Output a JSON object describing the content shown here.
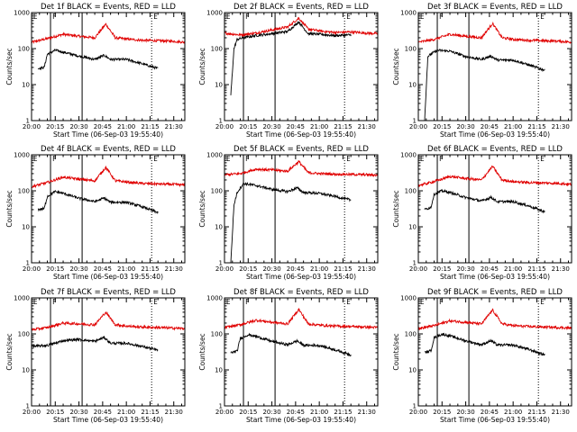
{
  "figure": {
    "colors": {
      "events": "#000000",
      "lld": "#e00000",
      "frame": "#000000",
      "background": "#ffffff"
    }
  },
  "chart_data": [
    {
      "type": "line",
      "title": "Det 1f BLACK = Events, RED = LLD",
      "xlabel": "Start Time (06-Sep-03 19:55:40)",
      "ylabel": "Counts/sec",
      "xscale": "time (UT)",
      "yscale": "log",
      "xlim": [
        "20:00",
        "21:37"
      ],
      "ylim": [
        1,
        1000
      ],
      "x_ticks": [
        "20:00",
        "20:15",
        "20:30",
        "20:45",
        "21:00",
        "21:15",
        "21:30"
      ],
      "y_ticks": [
        "1",
        "10",
        "100",
        "1000"
      ],
      "grid": false,
      "event_markers": [
        {
          "label": "E",
          "time": "20:00",
          "style": "solid"
        },
        {
          "label": "F",
          "time": "20:12",
          "style": "solid"
        },
        {
          "label": "",
          "time": "20:32",
          "style": "solid"
        },
        {
          "label": "E",
          "time": "21:16",
          "style": "dotted"
        }
      ],
      "series": [
        {
          "color": "#e00000",
          "x": [
            "20:00",
            "20:10",
            "20:20",
            "20:30",
            "20:40",
            "20:47",
            "20:53",
            "21:00",
            "21:10",
            "21:20",
            "21:30",
            "21:37"
          ],
          "y": [
            150,
            190,
            250,
            220,
            200,
            480,
            200,
            185,
            170,
            165,
            160,
            150
          ]
        },
        {
          "color": "#000000",
          "x": [
            "20:04",
            "20:08",
            "20:10",
            "20:15",
            "20:20",
            "20:30",
            "20:40",
            "20:46",
            "20:50",
            "21:00",
            "21:10",
            "21:20"
          ],
          "y": [
            28,
            30,
            70,
            90,
            80,
            62,
            50,
            65,
            50,
            50,
            38,
            28
          ]
        }
      ]
    },
    {
      "type": "line",
      "title": "Det 2f BLACK = Events, RED = LLD",
      "xlabel": "Start Time (06-Sep-03 19:55:40)",
      "ylabel": "Counts/sec",
      "xscale": "time (UT)",
      "yscale": "log",
      "xlim": [
        "20:00",
        "21:37"
      ],
      "ylim": [
        1,
        1000
      ],
      "x_ticks": [
        "20:00",
        "20:15",
        "20:30",
        "20:45",
        "21:00",
        "21:15",
        "21:30"
      ],
      "y_ticks": [
        "1",
        "10",
        "100",
        "1000"
      ],
      "grid": false,
      "event_markers": [
        {
          "label": "E",
          "time": "20:00",
          "style": "solid"
        },
        {
          "label": "F",
          "time": "20:12",
          "style": "solid"
        },
        {
          "label": "",
          "time": "20:32",
          "style": "solid"
        },
        {
          "label": "E",
          "time": "21:16",
          "style": "dotted"
        }
      ],
      "series": [
        {
          "color": "#e00000",
          "x": [
            "20:00",
            "20:10",
            "20:20",
            "20:30",
            "20:40",
            "20:47",
            "20:53",
            "21:00",
            "21:10",
            "21:20",
            "21:30",
            "21:37"
          ],
          "y": [
            270,
            240,
            270,
            330,
            400,
            700,
            350,
            310,
            280,
            290,
            270,
            260
          ]
        },
        {
          "color": "#000000",
          "x": [
            "20:04",
            "20:06",
            "20:08",
            "20:12",
            "20:20",
            "20:30",
            "20:40",
            "20:47",
            "20:53",
            "21:00",
            "21:10",
            "21:20"
          ],
          "y": [
            5,
            100,
            180,
            200,
            230,
            260,
            300,
            550,
            260,
            250,
            230,
            240
          ]
        }
      ]
    },
    {
      "type": "line",
      "title": "Det 3f BLACK = Events, RED = LLD",
      "xlabel": "Start Time (06-Sep-03 19:55:40)",
      "ylabel": "Counts/sec",
      "xscale": "time (UT)",
      "yscale": "log",
      "xlim": [
        "20:00",
        "21:37"
      ],
      "ylim": [
        1,
        1000
      ],
      "x_ticks": [
        "20:00",
        "20:15",
        "20:30",
        "20:45",
        "21:00",
        "21:15",
        "21:30"
      ],
      "y_ticks": [
        "1",
        "10",
        "100",
        "1000"
      ],
      "grid": false,
      "event_markers": [
        {
          "label": "E",
          "time": "20:00",
          "style": "solid"
        },
        {
          "label": "F",
          "time": "20:12",
          "style": "solid"
        },
        {
          "label": "",
          "time": "20:32",
          "style": "solid"
        },
        {
          "label": "E",
          "time": "21:16",
          "style": "dotted"
        }
      ],
      "series": [
        {
          "color": "#e00000",
          "x": [
            "20:00",
            "20:10",
            "20:20",
            "20:30",
            "20:40",
            "20:47",
            "20:53",
            "21:00",
            "21:10",
            "21:20",
            "21:30",
            "21:37"
          ],
          "y": [
            150,
            180,
            250,
            220,
            200,
            500,
            200,
            180,
            170,
            165,
            160,
            150
          ]
        },
        {
          "color": "#000000",
          "x": [
            "20:04",
            "20:06",
            "20:08",
            "20:12",
            "20:20",
            "20:30",
            "20:40",
            "20:46",
            "20:50",
            "21:00",
            "21:10",
            "21:20"
          ],
          "y": [
            1,
            60,
            70,
            90,
            85,
            60,
            50,
            62,
            48,
            48,
            35,
            25
          ]
        }
      ]
    },
    {
      "type": "line",
      "title": "Det 4f BLACK = Events, RED = LLD",
      "xlabel": "Start Time (06-Sep-03 19:55:40)",
      "ylabel": "Counts/sec",
      "xscale": "time (UT)",
      "yscale": "log",
      "xlim": [
        "20:00",
        "21:37"
      ],
      "ylim": [
        1,
        1000
      ],
      "x_ticks": [
        "20:00",
        "20:15",
        "20:30",
        "20:45",
        "21:00",
        "21:15",
        "21:30"
      ],
      "y_ticks": [
        "1",
        "10",
        "100",
        "1000"
      ],
      "grid": false,
      "event_markers": [
        {
          "label": "E",
          "time": "20:00",
          "style": "solid"
        },
        {
          "label": "F",
          "time": "20:12",
          "style": "solid"
        },
        {
          "label": "",
          "time": "20:32",
          "style": "solid"
        },
        {
          "label": "E",
          "time": "21:16",
          "style": "dotted"
        }
      ],
      "series": [
        {
          "color": "#e00000",
          "x": [
            "20:00",
            "20:10",
            "20:20",
            "20:30",
            "20:40",
            "20:47",
            "20:53",
            "21:00",
            "21:10",
            "21:20",
            "21:30",
            "21:37"
          ],
          "y": [
            130,
            170,
            240,
            210,
            190,
            450,
            190,
            175,
            160,
            155,
            150,
            145
          ]
        },
        {
          "color": "#000000",
          "x": [
            "20:04",
            "20:08",
            "20:10",
            "20:15",
            "20:20",
            "20:30",
            "20:40",
            "20:46",
            "20:50",
            "21:00",
            "21:10",
            "21:20"
          ],
          "y": [
            30,
            32,
            70,
            95,
            85,
            62,
            50,
            63,
            48,
            48,
            36,
            25
          ]
        }
      ]
    },
    {
      "type": "line",
      "title": "Det 5f BLACK = Events, RED = LLD",
      "xlabel": "Start Time (06-Sep-03 19:55:40)",
      "ylabel": "Counts/sec",
      "xscale": "time (UT)",
      "yscale": "log",
      "xlim": [
        "20:00",
        "21:37"
      ],
      "ylim": [
        1,
        1000
      ],
      "x_ticks": [
        "20:00",
        "20:15",
        "20:30",
        "20:45",
        "21:00",
        "21:15",
        "21:30"
      ],
      "y_ticks": [
        "1",
        "10",
        "100",
        "1000"
      ],
      "grid": false,
      "event_markers": [
        {
          "label": "E",
          "time": "20:00",
          "style": "solid"
        },
        {
          "label": "F",
          "time": "20:12",
          "style": "solid"
        },
        {
          "label": "",
          "time": "20:32",
          "style": "solid"
        },
        {
          "label": "E",
          "time": "21:16",
          "style": "dotted"
        }
      ],
      "series": [
        {
          "color": "#e00000",
          "x": [
            "20:00",
            "20:10",
            "20:20",
            "20:30",
            "20:40",
            "20:47",
            "20:53",
            "21:00",
            "21:10",
            "21:20",
            "21:30",
            "21:37"
          ],
          "y": [
            280,
            300,
            400,
            380,
            350,
            650,
            320,
            300,
            290,
            285,
            280,
            270
          ]
        },
        {
          "color": "#000000",
          "x": [
            "20:04",
            "20:06",
            "20:08",
            "20:12",
            "20:20",
            "20:30",
            "20:40",
            "20:46",
            "20:50",
            "21:00",
            "21:10",
            "21:20"
          ],
          "y": [
            1,
            40,
            90,
            160,
            140,
            110,
            95,
            120,
            90,
            85,
            70,
            55
          ]
        }
      ]
    },
    {
      "type": "line",
      "title": "Det 6f BLACK = Events, RED = LLD",
      "xlabel": "Start Time (06-Sep-03 19:55:40)",
      "ylabel": "Counts/sec",
      "xscale": "time (UT)",
      "yscale": "log",
      "xlim": [
        "20:00",
        "21:37"
      ],
      "ylim": [
        1,
        1000
      ],
      "x_ticks": [
        "20:00",
        "20:15",
        "20:30",
        "20:45",
        "21:00",
        "21:15",
        "21:30"
      ],
      "y_ticks": [
        "1",
        "10",
        "100",
        "1000"
      ],
      "grid": false,
      "event_markers": [
        {
          "label": "E",
          "time": "20:00",
          "style": "solid"
        },
        {
          "label": "F",
          "time": "20:12",
          "style": "solid"
        },
        {
          "label": "",
          "time": "20:32",
          "style": "solid"
        },
        {
          "label": "E",
          "time": "21:16",
          "style": "dotted"
        }
      ],
      "series": [
        {
          "color": "#e00000",
          "x": [
            "20:00",
            "20:10",
            "20:20",
            "20:30",
            "20:40",
            "20:47",
            "20:53",
            "21:00",
            "21:10",
            "21:20",
            "21:30",
            "21:37"
          ],
          "y": [
            140,
            180,
            250,
            220,
            200,
            480,
            200,
            180,
            170,
            165,
            160,
            150
          ]
        },
        {
          "color": "#000000",
          "x": [
            "20:04",
            "20:08",
            "20:10",
            "20:15",
            "20:20",
            "20:30",
            "20:40",
            "20:46",
            "20:50",
            "21:00",
            "21:10",
            "21:20"
          ],
          "y": [
            30,
            35,
            80,
            100,
            90,
            65,
            52,
            66,
            50,
            50,
            38,
            26
          ]
        }
      ]
    },
    {
      "type": "line",
      "title": "Det 7f BLACK = Events, RED = LLD",
      "xlabel": "Start Time (06-Sep-03 19:55:40)",
      "ylabel": "Counts/sec",
      "xscale": "time (UT)",
      "yscale": "log",
      "xlim": [
        "20:00",
        "21:37"
      ],
      "ylim": [
        1,
        1000
      ],
      "x_ticks": [
        "20:00",
        "20:15",
        "20:30",
        "20:45",
        "21:00",
        "21:15",
        "21:30"
      ],
      "y_ticks": [
        "1",
        "10",
        "100",
        "1000"
      ],
      "grid": false,
      "event_markers": [
        {
          "label": "E",
          "time": "20:00",
          "style": "solid"
        },
        {
          "label": "F",
          "time": "20:12",
          "style": "solid"
        },
        {
          "label": "",
          "time": "20:32",
          "style": "solid"
        },
        {
          "label": "E",
          "time": "21:16",
          "style": "dotted"
        }
      ],
      "series": [
        {
          "color": "#e00000",
          "x": [
            "20:00",
            "20:10",
            "20:20",
            "20:30",
            "20:40",
            "20:47",
            "20:53",
            "21:00",
            "21:10",
            "21:20",
            "21:30",
            "21:37"
          ],
          "y": [
            130,
            150,
            200,
            190,
            180,
            400,
            180,
            165,
            155,
            150,
            145,
            140
          ]
        },
        {
          "color": "#000000",
          "x": [
            "20:00",
            "20:10",
            "20:15",
            "20:20",
            "20:30",
            "20:40",
            "20:46",
            "20:50",
            "21:00",
            "21:10",
            "21:20"
          ],
          "y": [
            45,
            48,
            55,
            65,
            70,
            62,
            80,
            55,
            55,
            45,
            35
          ]
        }
      ]
    },
    {
      "type": "line",
      "title": "Det 8f BLACK = Events, RED = LLD",
      "xlabel": "Start Time (06-Sep-03 19:55:40)",
      "ylabel": "Counts/sec",
      "xscale": "time (UT)",
      "yscale": "log",
      "xlim": [
        "20:00",
        "21:37"
      ],
      "ylim": [
        1,
        1000
      ],
      "x_ticks": [
        "20:00",
        "20:15",
        "20:30",
        "20:45",
        "21:00",
        "21:15",
        "21:30"
      ],
      "y_ticks": [
        "1",
        "10",
        "100",
        "1000"
      ],
      "grid": false,
      "event_markers": [
        {
          "label": "E",
          "time": "20:00",
          "style": "solid"
        },
        {
          "label": "F",
          "time": "20:12",
          "style": "solid"
        },
        {
          "label": "",
          "time": "20:32",
          "style": "solid"
        },
        {
          "label": "E",
          "time": "21:16",
          "style": "dotted"
        }
      ],
      "series": [
        {
          "color": "#e00000",
          "x": [
            "20:00",
            "20:10",
            "20:20",
            "20:30",
            "20:40",
            "20:47",
            "20:53",
            "21:00",
            "21:10",
            "21:20",
            "21:30",
            "21:37"
          ],
          "y": [
            150,
            180,
            240,
            210,
            190,
            480,
            190,
            175,
            165,
            160,
            155,
            150
          ]
        },
        {
          "color": "#000000",
          "x": [
            "20:04",
            "20:08",
            "20:10",
            "20:15",
            "20:20",
            "20:30",
            "20:40",
            "20:46",
            "20:50",
            "21:00",
            "21:10",
            "21:20"
          ],
          "y": [
            30,
            33,
            75,
            95,
            85,
            62,
            50,
            64,
            48,
            48,
            36,
            26
          ]
        }
      ]
    },
    {
      "type": "line",
      "title": "Det 9f BLACK = Events, RED = LLD",
      "xlabel": "Start Time (06-Sep-03 19:55:40)",
      "ylabel": "Counts/sec",
      "xscale": "time (UT)",
      "yscale": "log",
      "xlim": [
        "20:00",
        "21:37"
      ],
      "ylim": [
        1,
        1000
      ],
      "x_ticks": [
        "20:00",
        "20:15",
        "20:30",
        "20:45",
        "21:00",
        "21:15",
        "21:30"
      ],
      "y_ticks": [
        "1",
        "10",
        "100",
        "1000"
      ],
      "grid": false,
      "event_markers": [
        {
          "label": "E",
          "time": "20:00",
          "style": "solid"
        },
        {
          "label": "F",
          "time": "20:12",
          "style": "solid"
        },
        {
          "label": "",
          "time": "20:32",
          "style": "solid"
        },
        {
          "label": "E",
          "time": "21:16",
          "style": "dotted"
        }
      ],
      "series": [
        {
          "color": "#e00000",
          "x": [
            "20:00",
            "20:10",
            "20:20",
            "20:30",
            "20:40",
            "20:47",
            "20:53",
            "21:00",
            "21:10",
            "21:20",
            "21:30",
            "21:37"
          ],
          "y": [
            140,
            170,
            230,
            210,
            190,
            460,
            190,
            170,
            160,
            155,
            150,
            145
          ]
        },
        {
          "color": "#000000",
          "x": [
            "20:04",
            "20:08",
            "20:10",
            "20:15",
            "20:20",
            "20:30",
            "20:40",
            "20:46",
            "20:50",
            "21:00",
            "21:10",
            "21:20"
          ],
          "y": [
            30,
            34,
            78,
            98,
            88,
            64,
            50,
            65,
            49,
            49,
            37,
            26
          ]
        }
      ]
    }
  ]
}
